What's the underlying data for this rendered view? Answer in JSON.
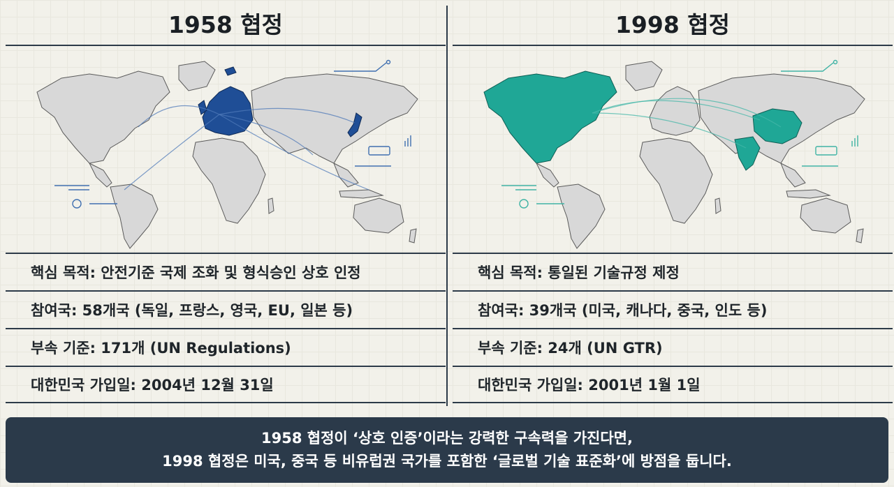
{
  "colors": {
    "left_highlight": "#1f4e96",
    "right_highlight": "#1fa796",
    "divider": "#2c3a48",
    "footer_bg": "#2b3a4a"
  },
  "left": {
    "title": "1958 협정",
    "map_highlight": "Europe and Japan",
    "rows": [
      "핵심 목적: 안전기준 국제 조화 및 형식승인 상호 인정",
      "참여국: 58개국 (독일, 프랑스, 영국, EU, 일본 등)",
      "부속 기준: 171개 (UN Regulations)",
      "대한민국 가입일: 2004년 12월 31일"
    ]
  },
  "right": {
    "title": "1998 협정",
    "map_highlight": "North America, China and India",
    "rows": [
      "핵심 목적: 통일된 기술규정 제정",
      "참여국: 39개국 (미국, 캐나다, 중국, 인도 등)",
      "부속 기준: 24개 (UN GTR)",
      "대한민국 가입일: 2001년 1월 1일"
    ]
  },
  "footer": {
    "line1": "1958 협정이 ‘상호 인증’이라는 강력한 구속력을 가진다면,",
    "line2": "1998 협정은 미국, 중국 등 비유럽권 국가를 포함한 ‘글로벌 기술 표준화’에 방점을 둡니다."
  }
}
